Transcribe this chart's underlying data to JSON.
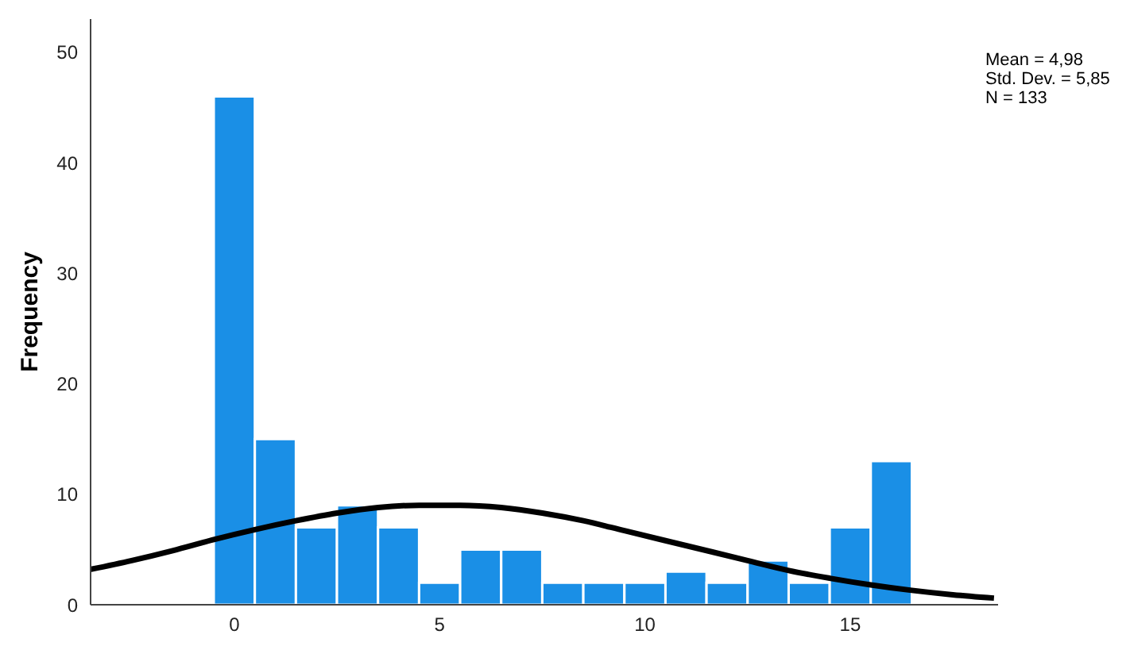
{
  "chart_data": {
    "type": "histogram",
    "ylabel": "Frequency",
    "annotations": [
      "Mean = 4,98",
      "Std. Dev. = 5,85",
      "N = 133"
    ],
    "bins": [
      -0.5,
      0.5,
      1.5,
      2.5,
      3.5,
      4.5,
      5.5,
      6.5,
      7.5,
      8.5,
      9.5,
      10.5,
      11.5,
      12.5,
      13.5,
      14.5,
      15.5,
      16.5
    ],
    "values": [
      46,
      15,
      7,
      9,
      7,
      2,
      5,
      5,
      2,
      2,
      2,
      3,
      2,
      4,
      2,
      7,
      13
    ],
    "color": "#1a8fe6",
    "series": [
      {
        "type": "line",
        "color": "#000000",
        "x": [
          -3.5,
          -2.5,
          -1.5,
          -0.5,
          0.5,
          1.5,
          2.5,
          3.5,
          4.5,
          5.5,
          6.5,
          7.5,
          8.5,
          9.5,
          10.5,
          11.5,
          12.5,
          13.5,
          14.5,
          15.5,
          16.5,
          17.5,
          18.5
        ],
        "values": [
          3.2,
          4.0,
          4.9,
          5.9,
          6.8,
          7.6,
          8.3,
          8.8,
          9.0,
          9.0,
          8.8,
          8.3,
          7.6,
          6.7,
          5.8,
          4.9,
          4.0,
          3.1,
          2.4,
          1.8,
          1.3,
          0.9,
          0.6
        ]
      }
    ],
    "xlim": [
      -3.5,
      18.6
    ],
    "xticks": [
      0,
      5,
      10,
      15
    ],
    "ylim": [
      0,
      53
    ],
    "yticks": [
      0,
      10,
      20,
      30,
      40,
      50
    ],
    "grid": false,
    "legend": false
  }
}
